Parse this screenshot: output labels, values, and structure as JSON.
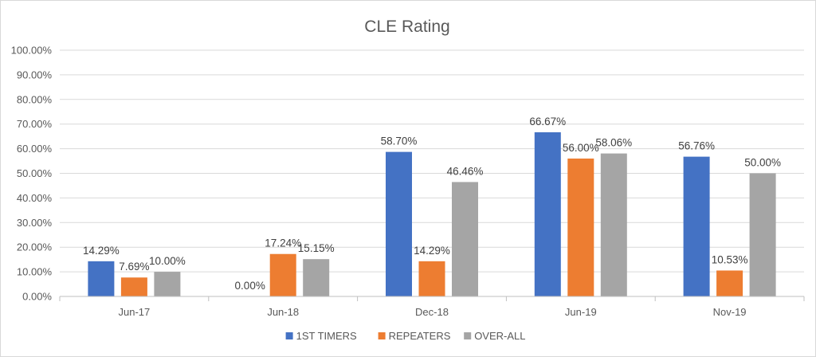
{
  "chart_data": {
    "type": "bar",
    "title": "CLE Rating",
    "xlabel": "",
    "ylabel": "",
    "categories": [
      "Jun-17",
      "Jun-18",
      "Dec-18",
      "Jun-19",
      "Nov-19"
    ],
    "series": [
      {
        "name": "1ST TIMERS",
        "color": "#4472c4",
        "values": [
          14.29,
          0.0,
          58.7,
          66.67,
          56.76
        ],
        "labels": [
          "14.29%",
          "0.00%",
          "58.70%",
          "66.67%",
          "56.76%"
        ]
      },
      {
        "name": "REPEATERS",
        "color": "#ed7d31",
        "values": [
          7.69,
          17.24,
          14.29,
          56.0,
          10.53
        ],
        "labels": [
          "7.69%",
          "17.24%",
          "14.29%",
          "56.00%",
          "10.53%"
        ]
      },
      {
        "name": "OVER-ALL",
        "color": "#a5a5a5",
        "values": [
          10.0,
          15.15,
          46.46,
          58.06,
          50.0
        ],
        "labels": [
          "10.00%",
          "15.15%",
          "46.46%",
          "58.06%",
          "50.00%"
        ]
      }
    ],
    "ylim": [
      0,
      100
    ],
    "yticks": [
      0,
      10,
      20,
      30,
      40,
      50,
      60,
      70,
      80,
      90,
      100
    ],
    "ytick_labels": [
      "0.00%",
      "10.00%",
      "20.00%",
      "30.00%",
      "40.00%",
      "50.00%",
      "60.00%",
      "70.00%",
      "80.00%",
      "90.00%",
      "100.00%"
    ],
    "grid": true,
    "legend_position": "bottom"
  }
}
